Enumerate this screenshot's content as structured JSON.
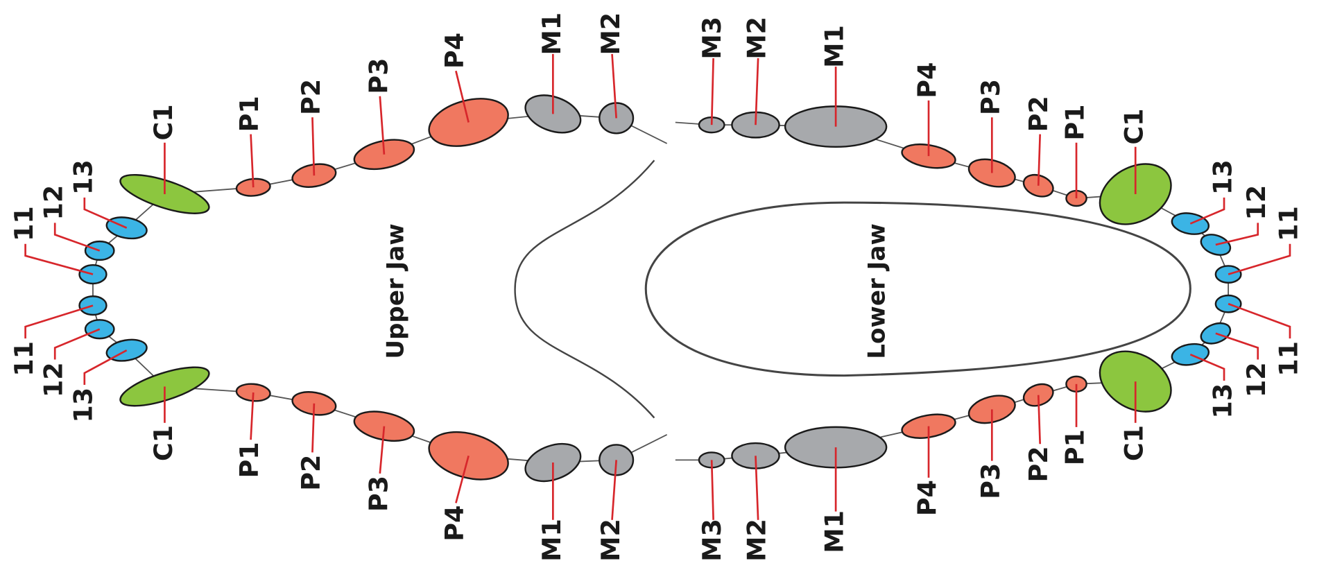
{
  "upper_jaw": {
    "label": "Upper Jaw",
    "teeth": [
      "C1",
      "P1",
      "P2",
      "P3",
      "P4",
      "M1",
      "M2",
      "13",
      "12",
      "11",
      "11",
      "12",
      "13",
      "C1",
      "P1",
      "P2",
      "P3",
      "P4",
      "M1",
      "M2"
    ]
  },
  "lower_jaw": {
    "label": "Lower Jaw",
    "teeth": [
      "M3",
      "M2",
      "M1",
      "P4",
      "P3",
      "P2",
      "P1",
      "C1",
      "13",
      "12",
      "11",
      "11",
      "12",
      "13",
      "C1",
      "P1",
      "P2",
      "P3",
      "P4",
      "M1",
      "M2",
      "M3"
    ]
  }
}
